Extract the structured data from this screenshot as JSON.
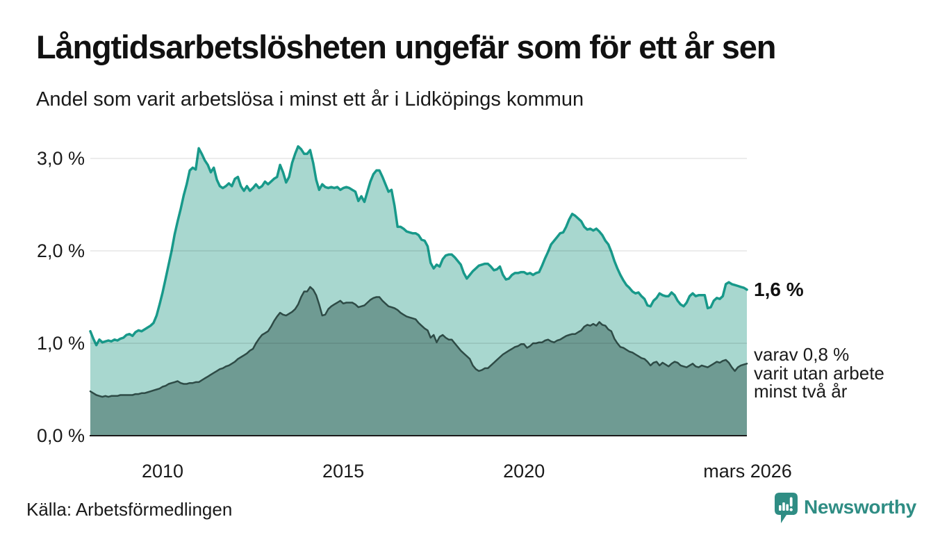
{
  "header": {
    "title": "Långtidsarbetslösheten ungefär som för ett år sen",
    "subtitle": "Andel som varit arbetslösa i minst ett år i Lidköpings kommun"
  },
  "annotations": {
    "total_label": "1,6 %",
    "detail_lines": [
      "varav 0,8 %",
      "varit utan arbete",
      "minst två år"
    ]
  },
  "footer": {
    "source": "Källa: Arbetsförmedlingen",
    "logo_text": "Newsworthy"
  },
  "colors": {
    "series1_line": "#18998a",
    "series1_fill": "#a8d7cf",
    "series2_line": "#2e4b46",
    "series2_fill": "#6f9b93",
    "gridline": "rgba(0,0,0,0.10)",
    "axis": "#1a1a1a",
    "logo_teal": "#2f8d84"
  },
  "chart_data": {
    "type": "area",
    "title": "Långtidsarbetslösheten ungefär som för ett år sen",
    "subtitle": "Andel som varit arbetslösa i minst ett år i Lidköpings kommun",
    "unit": "%",
    "x_start": "2008-01",
    "x_end": "2026-03",
    "x_frequency": "monthly",
    "ylim": [
      0,
      3.3
    ],
    "grid": "horizontal",
    "legend": "none",
    "yticks": [
      {
        "value": 0,
        "label": "0,0 %"
      },
      {
        "value": 1,
        "label": "1,0 %"
      },
      {
        "value": 2,
        "label": "2,0 %"
      },
      {
        "value": 3,
        "label": "3,0 %"
      }
    ],
    "xticks": [
      {
        "month_index": 24,
        "label": "2010"
      },
      {
        "month_index": 84,
        "label": "2015"
      },
      {
        "month_index": 144,
        "label": "2020"
      },
      {
        "month_index": 218,
        "label": "mars 2026"
      }
    ],
    "series": [
      {
        "name": "Arbetslösa minst ett år",
        "end_label": "1,6 %",
        "line_color": "#18998a",
        "fill_color": "#a8d7cf",
        "values": [
          1.13,
          1.05,
          0.98,
          1.04,
          1.01,
          1.02,
          1.03,
          1.02,
          1.04,
          1.03,
          1.05,
          1.06,
          1.09,
          1.1,
          1.08,
          1.12,
          1.14,
          1.13,
          1.15,
          1.17,
          1.19,
          1.22,
          1.3,
          1.42,
          1.55,
          1.7,
          1.85,
          2.0,
          2.18,
          2.32,
          2.45,
          2.6,
          2.72,
          2.87,
          2.9,
          2.88,
          3.11,
          3.05,
          2.98,
          2.93,
          2.85,
          2.9,
          2.77,
          2.7,
          2.68,
          2.7,
          2.73,
          2.7,
          2.78,
          2.8,
          2.7,
          2.65,
          2.7,
          2.65,
          2.68,
          2.72,
          2.68,
          2.7,
          2.75,
          2.72,
          2.75,
          2.78,
          2.8,
          2.93,
          2.85,
          2.74,
          2.8,
          2.95,
          3.05,
          3.13,
          3.1,
          3.05,
          3.05,
          3.09,
          2.95,
          2.77,
          2.66,
          2.72,
          2.69,
          2.68,
          2.69,
          2.68,
          2.69,
          2.66,
          2.68,
          2.69,
          2.68,
          2.66,
          2.64,
          2.54,
          2.59,
          2.53,
          2.64,
          2.75,
          2.83,
          2.87,
          2.87,
          2.8,
          2.72,
          2.64,
          2.66,
          2.49,
          2.26,
          2.26,
          2.24,
          2.21,
          2.2,
          2.19,
          2.19,
          2.17,
          2.12,
          2.11,
          2.05,
          1.87,
          1.81,
          1.85,
          1.83,
          1.91,
          1.95,
          1.96,
          1.96,
          1.93,
          1.89,
          1.85,
          1.76,
          1.7,
          1.74,
          1.78,
          1.81,
          1.84,
          1.85,
          1.86,
          1.86,
          1.83,
          1.79,
          1.8,
          1.83,
          1.74,
          1.69,
          1.7,
          1.74,
          1.76,
          1.76,
          1.77,
          1.77,
          1.75,
          1.76,
          1.74,
          1.76,
          1.77,
          1.84,
          1.92,
          1.99,
          2.07,
          2.11,
          2.15,
          2.19,
          2.2,
          2.26,
          2.34,
          2.4,
          2.38,
          2.35,
          2.32,
          2.26,
          2.23,
          2.24,
          2.22,
          2.24,
          2.21,
          2.17,
          2.11,
          2.07,
          1.99,
          1.89,
          1.81,
          1.74,
          1.68,
          1.63,
          1.6,
          1.56,
          1.54,
          1.55,
          1.51,
          1.48,
          1.41,
          1.4,
          1.46,
          1.49,
          1.54,
          1.52,
          1.51,
          1.51,
          1.55,
          1.52,
          1.46,
          1.42,
          1.4,
          1.44,
          1.51,
          1.54,
          1.51,
          1.52,
          1.52,
          1.52,
          1.38,
          1.39,
          1.46,
          1.49,
          1.48,
          1.51,
          1.64,
          1.66,
          1.64,
          1.63,
          1.62,
          1.61,
          1.6,
          1.58
        ]
      },
      {
        "name": "Arbetslösa minst två år",
        "end_label": "varav 0,8 % varit utan arbete minst två år",
        "line_color": "#2e4b46",
        "fill_color": "#6f9b93",
        "values": [
          0.48,
          0.46,
          0.44,
          0.43,
          0.42,
          0.43,
          0.42,
          0.43,
          0.43,
          0.43,
          0.44,
          0.44,
          0.44,
          0.44,
          0.44,
          0.45,
          0.45,
          0.46,
          0.46,
          0.47,
          0.48,
          0.49,
          0.5,
          0.51,
          0.53,
          0.54,
          0.56,
          0.57,
          0.58,
          0.59,
          0.57,
          0.56,
          0.56,
          0.57,
          0.57,
          0.58,
          0.58,
          0.6,
          0.62,
          0.64,
          0.66,
          0.68,
          0.7,
          0.72,
          0.73,
          0.75,
          0.76,
          0.78,
          0.8,
          0.83,
          0.85,
          0.87,
          0.89,
          0.92,
          0.94,
          1.0,
          1.05,
          1.09,
          1.11,
          1.13,
          1.18,
          1.24,
          1.29,
          1.33,
          1.31,
          1.3,
          1.32,
          1.34,
          1.37,
          1.42,
          1.5,
          1.56,
          1.56,
          1.61,
          1.58,
          1.52,
          1.42,
          1.3,
          1.31,
          1.37,
          1.4,
          1.42,
          1.44,
          1.46,
          1.43,
          1.44,
          1.44,
          1.44,
          1.42,
          1.39,
          1.4,
          1.41,
          1.44,
          1.47,
          1.49,
          1.5,
          1.5,
          1.46,
          1.43,
          1.4,
          1.39,
          1.38,
          1.36,
          1.33,
          1.31,
          1.29,
          1.28,
          1.27,
          1.26,
          1.22,
          1.19,
          1.16,
          1.14,
          1.06,
          1.09,
          1.01,
          1.07,
          1.09,
          1.06,
          1.04,
          1.04,
          1.0,
          0.96,
          0.92,
          0.89,
          0.86,
          0.83,
          0.76,
          0.72,
          0.7,
          0.71,
          0.73,
          0.73,
          0.76,
          0.79,
          0.82,
          0.85,
          0.88,
          0.9,
          0.92,
          0.94,
          0.96,
          0.97,
          0.99,
          0.99,
          0.95,
          0.97,
          1.0,
          1.0,
          1.01,
          1.01,
          1.03,
          1.04,
          1.02,
          1.01,
          1.03,
          1.04,
          1.06,
          1.08,
          1.09,
          1.1,
          1.1,
          1.12,
          1.14,
          1.18,
          1.2,
          1.19,
          1.21,
          1.19,
          1.23,
          1.2,
          1.19,
          1.15,
          1.13,
          1.05,
          1.0,
          0.96,
          0.95,
          0.93,
          0.91,
          0.9,
          0.88,
          0.86,
          0.84,
          0.83,
          0.8,
          0.76,
          0.79,
          0.8,
          0.76,
          0.79,
          0.77,
          0.75,
          0.78,
          0.8,
          0.79,
          0.76,
          0.75,
          0.74,
          0.76,
          0.78,
          0.75,
          0.74,
          0.76,
          0.75,
          0.74,
          0.76,
          0.78,
          0.8,
          0.79,
          0.81,
          0.82,
          0.79,
          0.74,
          0.7,
          0.74,
          0.76,
          0.77,
          0.78
        ]
      }
    ]
  }
}
